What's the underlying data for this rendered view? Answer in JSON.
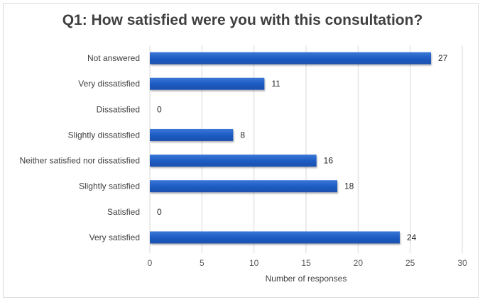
{
  "chart_data": {
    "type": "bar",
    "orientation": "horizontal",
    "title": "Q1: How satisfied were you with this consultation?",
    "xlabel": "Number of responses",
    "ylabel": "",
    "categories": [
      "Not answered",
      "Very dissatisfied",
      "Dissatisfied",
      "Slightly dissatisfied",
      "Neither satisfied nor dissatisfied",
      "Slightly satisfied",
      "Satisfied",
      "Very satisfied"
    ],
    "values": [
      27,
      11,
      0,
      8,
      16,
      18,
      0,
      24
    ],
    "data_labels": [
      "27",
      "11",
      "0",
      "8",
      "16",
      "18",
      "0",
      "24"
    ],
    "xlim": [
      0,
      30
    ],
    "xticks": [
      0,
      5,
      10,
      15,
      20,
      25,
      30
    ],
    "xtick_labels": [
      "0",
      "5",
      "10",
      "15",
      "20",
      "25",
      "30"
    ],
    "grid": "vertical",
    "legend": "none",
    "bar_color": "#1f5cc4"
  }
}
